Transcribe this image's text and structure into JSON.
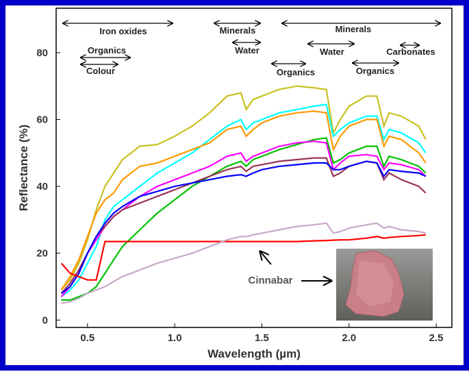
{
  "chart_data": {
    "type": "line",
    "xlabel": "Wavelength (µm)",
    "ylabel": "Reflectance (%)",
    "xlim": [
      0.32,
      2.59
    ],
    "ylim": [
      -2.2,
      93.3
    ],
    "xticks": [
      0.5,
      {
        "value": 1.0,
        "label": "1.0"
      },
      1.5,
      {
        "value": 2.0,
        "label": "2.0"
      },
      2.5
    ],
    "yticks": [
      0,
      20,
      40,
      60,
      80
    ],
    "x": [
      0.35,
      0.4,
      0.45,
      0.5,
      0.55,
      0.6,
      0.65,
      0.7,
      0.8,
      0.9,
      1.0,
      1.1,
      1.2,
      1.3,
      1.38,
      1.41,
      1.45,
      1.5,
      1.6,
      1.7,
      1.8,
      1.87,
      1.91,
      1.95,
      2.0,
      2.1,
      2.16,
      2.2,
      2.23,
      2.3,
      2.4,
      2.44
    ],
    "series": [
      {
        "color": "#c8c020",
        "values": [
          9,
          12,
          17,
          24,
          33,
          40,
          44,
          48,
          52,
          52.5,
          55,
          58,
          62,
          67,
          68,
          63,
          66,
          67,
          69,
          70,
          69.5,
          69,
          56,
          60,
          64,
          67,
          67,
          58,
          62,
          61,
          58,
          54
        ]
      },
      {
        "color": "#00ffff",
        "values": [
          7,
          9,
          12,
          17,
          22,
          30,
          34,
          36,
          40,
          44,
          47,
          50,
          54,
          58,
          60,
          57,
          59,
          60,
          62,
          63,
          64,
          64.5,
          55,
          57,
          59,
          61,
          61,
          54,
          57,
          56,
          53,
          50
        ]
      },
      {
        "color": "#ff9900",
        "values": [
          9,
          13,
          18,
          25,
          32,
          36,
          38,
          42,
          46,
          47,
          49,
          51,
          53,
          57,
          58,
          55,
          57,
          59,
          61,
          62,
          62.5,
          62,
          51,
          55,
          58,
          60,
          60,
          52,
          55,
          54,
          50,
          47
        ]
      },
      {
        "color": "#00c000",
        "values": [
          6,
          6,
          7,
          8,
          10,
          14,
          18,
          22,
          27,
          32,
          36,
          40,
          43,
          46,
          47.5,
          46,
          48,
          49,
          51,
          52.5,
          54,
          54.5,
          47,
          48,
          50,
          52,
          52,
          46,
          49,
          48,
          46,
          44
        ]
      },
      {
        "color": "#ff00ff",
        "values": [
          7,
          10,
          14,
          20,
          24,
          28,
          31,
          33,
          37,
          40,
          42,
          44,
          46,
          49,
          50,
          47.5,
          49,
          50,
          52,
          53,
          53.5,
          53,
          45,
          47,
          49,
          49.5,
          49,
          45,
          47,
          46.5,
          45,
          43
        ]
      },
      {
        "color": "#993355",
        "values": [
          8,
          11,
          15,
          20,
          25,
          28,
          31,
          33,
          35,
          37,
          39,
          41,
          43,
          45,
          46,
          44.5,
          46,
          46.5,
          47.5,
          48,
          48.5,
          48.5,
          43,
          44,
          46,
          47.5,
          47,
          42,
          44,
          42,
          40,
          38
        ]
      },
      {
        "color": "#0000ff",
        "values": [
          8,
          10,
          14,
          20,
          25,
          29,
          32,
          34,
          37,
          38.5,
          40,
          41,
          42,
          43,
          43.5,
          43,
          44,
          45,
          46,
          46.5,
          47,
          47,
          45,
          45,
          46,
          47.5,
          47,
          43,
          45,
          44.5,
          44,
          43
        ]
      },
      {
        "color": "#ff0000",
        "values": [
          17,
          14,
          13,
          12,
          12,
          23.5,
          23.5,
          23.5,
          23.5,
          23.5,
          23.5,
          23.5,
          23.5,
          23.5,
          23.5,
          23.5,
          23.5,
          23.5,
          23.5,
          23.5,
          23.7,
          23.8,
          23.9,
          24,
          24,
          24.5,
          25,
          24.5,
          24.7,
          25,
          25.3,
          25.5
        ]
      },
      {
        "color": "#c8a8c8",
        "values": [
          5,
          5.5,
          6.5,
          8,
          9,
          10,
          11.5,
          13,
          15,
          17,
          18.5,
          20,
          22,
          24,
          25,
          25,
          25.5,
          26,
          27,
          28,
          28.5,
          29,
          26,
          26.5,
          27.5,
          28.5,
          29,
          27.5,
          28,
          27,
          26.5,
          26
        ]
      }
    ],
    "annotations": [
      "Iron oxides",
      "Organics",
      "Colour",
      "Minerals",
      "Water",
      "Minerals",
      "Water",
      "Organics",
      "Organics",
      "Carbonates",
      "Cinnabar"
    ]
  }
}
